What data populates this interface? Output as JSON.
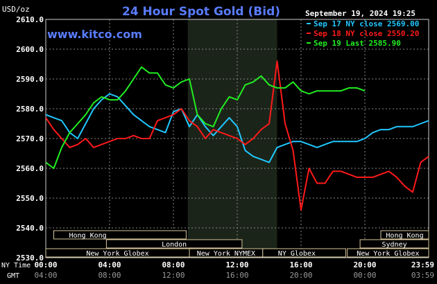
{
  "header": {
    "title": "24 Hour Spot Gold (Bid)",
    "timestamp": "September 19, 2024 19:25",
    "unit_label": "USD/oz",
    "site": "www.kitco.com"
  },
  "legend": [
    {
      "label": "Sep 17 NY close 2569.00",
      "color": "#20c8ff"
    },
    {
      "label": "Sep 18 NY close 2550.20",
      "color": "#ff1a1a"
    },
    {
      "label": "Sep 19 Last 2585.90",
      "color": "#22ee22"
    }
  ],
  "chart_data": {
    "type": "line",
    "title": "24 Hour Spot Gold (Bid)",
    "ylabel": "USD/oz",
    "ylim": [
      2530,
      2610
    ],
    "yticks": [
      "2530.0",
      "2540.0",
      "2550.0",
      "2560.0",
      "2570.0",
      "2580.0",
      "2590.0",
      "2600.0",
      "2610.0"
    ],
    "xlim": [
      0,
      24
    ],
    "x_axis_ny_label": "NY Time",
    "x_axis_gmt_label": "GMT",
    "x_ticks_ny": [
      "00:00",
      "04:00",
      "08:00",
      "12:00",
      "16:00",
      "20:00",
      "23:59"
    ],
    "x_ticks_gmt": [
      "04:00",
      "08:00",
      "12:00",
      "16:00",
      "20:00",
      "00:00",
      "03:59"
    ],
    "shaded_range_hours": [
      8.9,
      14.5
    ],
    "grid": true,
    "legend_position": "top-right",
    "series": [
      {
        "name": "Sep 17 NY close 2569.00",
        "color": "#20c8ff",
        "x": [
          0,
          0.5,
          1,
          1.5,
          2,
          2.5,
          3,
          3.5,
          4,
          4.5,
          5,
          5.5,
          6,
          6.5,
          7,
          7.5,
          8,
          8.5,
          9,
          9.5,
          10,
          10.5,
          11,
          11.5,
          12,
          12.5,
          13,
          13.5,
          14,
          14.5,
          15,
          15.5,
          16,
          16.5,
          17,
          17.5,
          18,
          18.5,
          19,
          19.5,
          20,
          20.5,
          21,
          21.5,
          22,
          22.5,
          23,
          23.5,
          24
        ],
        "values": [
          2578,
          2577,
          2576,
          2572,
          2570,
          2575,
          2580,
          2583,
          2585,
          2584,
          2581,
          2578,
          2576,
          2574,
          2573,
          2572,
          2579,
          2580,
          2574,
          2578,
          2574,
          2571,
          2574,
          2577,
          2574,
          2566,
          2564,
          2563,
          2562,
          2567,
          2568,
          2569,
          2569,
          2568,
          2567,
          2568,
          2569,
          2569,
          2569,
          2569,
          2570,
          2572,
          2573,
          2573,
          2574,
          2574,
          2574,
          2575,
          2576
        ]
      },
      {
        "name": "Sep 18 NY close 2550.20",
        "color": "#ff1a1a",
        "x": [
          0,
          0.5,
          1,
          1.5,
          2,
          2.5,
          3,
          3.5,
          4,
          4.5,
          5,
          5.5,
          6,
          6.5,
          7,
          7.5,
          8,
          8.5,
          9,
          9.5,
          10,
          10.5,
          11,
          11.5,
          12,
          12.5,
          13,
          13.5,
          14,
          14.5,
          15,
          15.5,
          16,
          16.5,
          17,
          17.5,
          18,
          18.5,
          19,
          19.5,
          20,
          20.5,
          21,
          21.5,
          22,
          22.5,
          23,
          23.5,
          24
        ],
        "values": [
          2577,
          2573,
          2570,
          2567,
          2568,
          2570,
          2567,
          2568,
          2569,
          2570,
          2570,
          2571,
          2570,
          2570,
          2576,
          2577,
          2578,
          2580,
          2576,
          2574,
          2570,
          2573,
          2572,
          2571,
          2570,
          2568,
          2570,
          2573,
          2575,
          2596,
          2575,
          2566,
          2546,
          2560,
          2555,
          2555,
          2559,
          2559,
          2558,
          2557,
          2557,
          2557,
          2558,
          2559,
          2557,
          2554,
          2552,
          2562,
          2564
        ]
      },
      {
        "name": "Sep 19 Last 2585.90",
        "color": "#22ee22",
        "x": [
          0,
          0.5,
          1,
          1.5,
          2,
          2.5,
          3,
          3.5,
          4,
          4.5,
          5,
          5.5,
          6,
          6.5,
          7,
          7.5,
          8,
          8.5,
          9,
          9.5,
          10,
          10.5,
          11,
          11.5,
          12,
          12.5,
          13,
          13.5,
          14,
          14.5,
          15,
          15.5,
          16,
          16.5,
          17,
          17.5,
          18,
          18.5,
          19,
          19.5,
          20
        ],
        "values": [
          2562,
          2560,
          2567,
          2572,
          2575,
          2578,
          2582,
          2584,
          2583,
          2583,
          2586,
          2590,
          2594,
          2592,
          2592,
          2588,
          2587,
          2589,
          2590,
          2578,
          2575,
          2574,
          2580,
          2584,
          2583,
          2588,
          2589,
          2591,
          2588,
          2587,
          2587,
          2589,
          2586,
          2585,
          2586,
          2586,
          2586,
          2586,
          2587,
          2587,
          2586
        ]
      }
    ]
  },
  "sessions_left": [
    {
      "label": "Hong Kong",
      "start_h": 0.5,
      "end_h": 8.8,
      "row": 0,
      "align": "left"
    },
    {
      "label": "London",
      "start_h": 3.8,
      "end_h": 12.3,
      "row": 1,
      "align": "center"
    },
    {
      "label": "New York Globex",
      "start_h": 0,
      "end_h": 9.0,
      "row": 2,
      "align": "center"
    },
    {
      "label": "New York NYMEX",
      "start_h": 9.0,
      "end_h": 13.6,
      "row": 2,
      "align": "center"
    },
    {
      "label": "NY Globex",
      "start_h": 13.6,
      "end_h": 18.8,
      "row": 2,
      "align": "left"
    }
  ],
  "sessions_right": [
    {
      "label": "Hong Kong",
      "start_h": 21.0,
      "end_h": 24,
      "row": 0,
      "align": "center"
    },
    {
      "label": "Sydney",
      "start_h": 19.7,
      "end_h": 24,
      "row": 1,
      "align": "center"
    },
    {
      "label": "New York Globex",
      "start_h": 18.9,
      "end_h": 24,
      "row": 2,
      "align": "center"
    }
  ]
}
